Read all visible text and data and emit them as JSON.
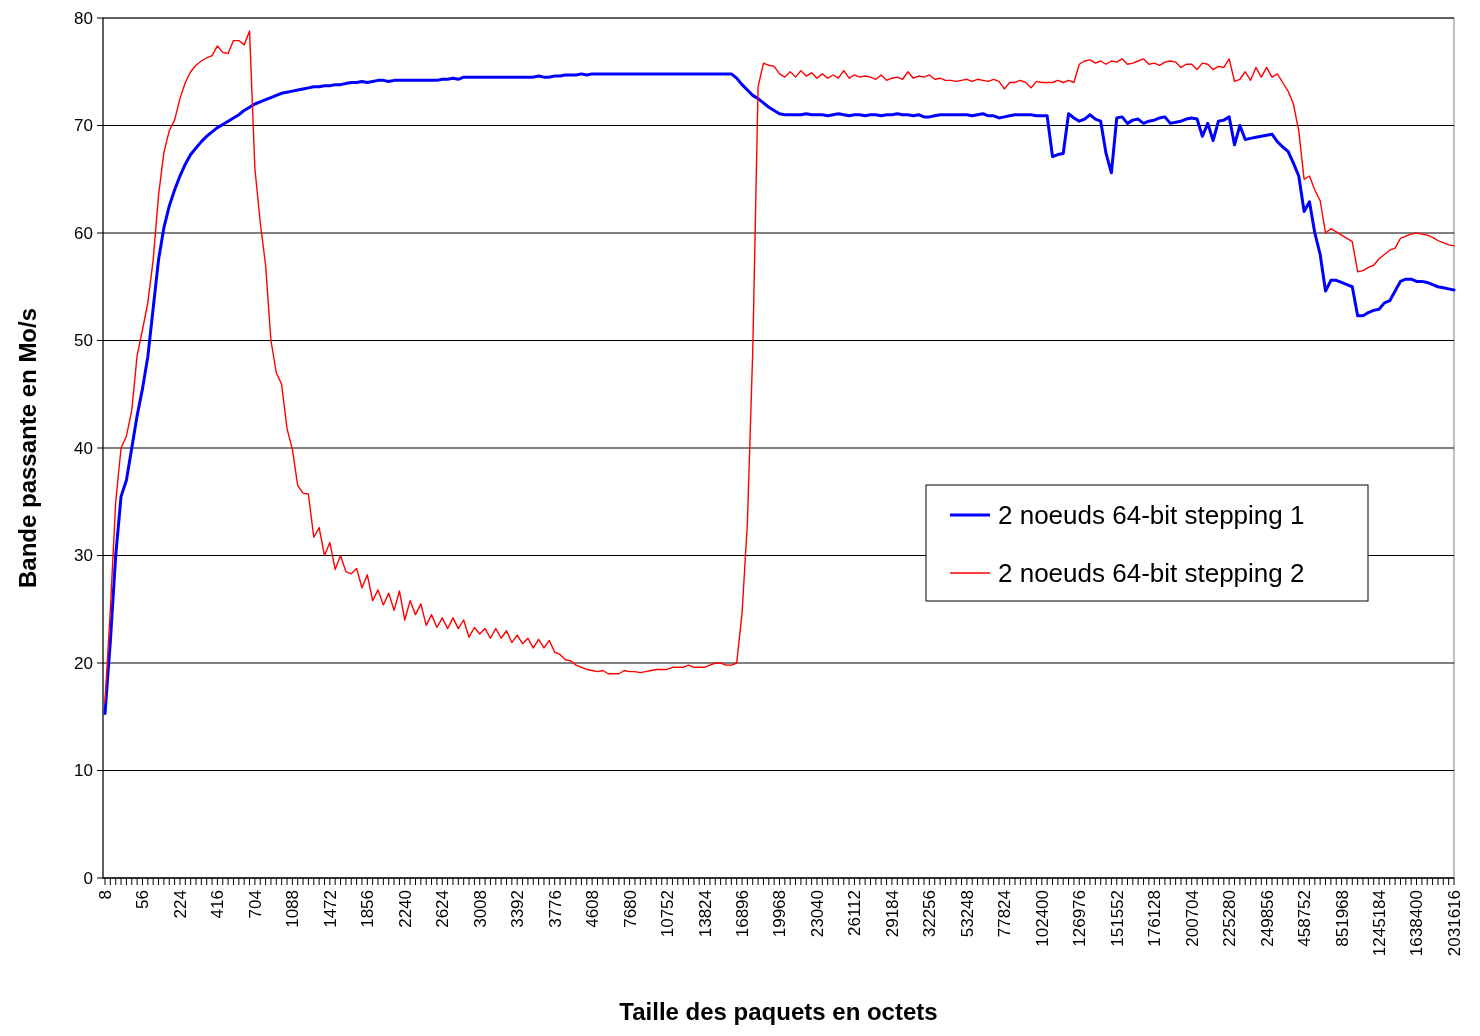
{
  "chart_data": {
    "type": "line",
    "xlabel": "Taille des paquets en octets",
    "ylabel": "Bande passante en Mo/s",
    "categories": [
      "8",
      null,
      null,
      null,
      null,
      null,
      null,
      "56",
      null,
      null,
      null,
      null,
      null,
      null,
      "224",
      null,
      null,
      null,
      null,
      null,
      null,
      "416",
      null,
      null,
      null,
      null,
      null,
      null,
      "704",
      null,
      null,
      null,
      null,
      null,
      null,
      "1088",
      null,
      null,
      null,
      null,
      null,
      null,
      "1472",
      null,
      null,
      null,
      null,
      null,
      null,
      "1856",
      null,
      null,
      null,
      null,
      null,
      null,
      "2240",
      null,
      null,
      null,
      null,
      null,
      null,
      "2624",
      null,
      null,
      null,
      null,
      null,
      null,
      "3008",
      null,
      null,
      null,
      null,
      null,
      null,
      "3392",
      null,
      null,
      null,
      null,
      null,
      null,
      "3776",
      null,
      null,
      null,
      null,
      null,
      null,
      "4608",
      null,
      null,
      null,
      null,
      null,
      null,
      "7680",
      null,
      null,
      null,
      null,
      null,
      null,
      "10752",
      null,
      null,
      null,
      null,
      null,
      null,
      "13824",
      null,
      null,
      null,
      null,
      null,
      null,
      "16896",
      null,
      null,
      null,
      null,
      null,
      null,
      "19968",
      null,
      null,
      null,
      null,
      null,
      null,
      "23040",
      null,
      null,
      null,
      null,
      null,
      null,
      "26112",
      null,
      null,
      null,
      null,
      null,
      null,
      "29184",
      null,
      null,
      null,
      null,
      null,
      null,
      "32256",
      null,
      null,
      null,
      null,
      null,
      null,
      "53248",
      null,
      null,
      null,
      null,
      null,
      null,
      "77824",
      null,
      null,
      null,
      null,
      null,
      null,
      "102400",
      null,
      null,
      null,
      null,
      null,
      null,
      "126976",
      null,
      null,
      null,
      null,
      null,
      null,
      "151552",
      null,
      null,
      null,
      null,
      null,
      null,
      "176128",
      null,
      null,
      null,
      null,
      null,
      null,
      "200704",
      null,
      null,
      null,
      null,
      null,
      null,
      "225280",
      null,
      null,
      null,
      null,
      null,
      null,
      "249856",
      null,
      null,
      null,
      null,
      null,
      null,
      "458752",
      null,
      null,
      null,
      null,
      null,
      null,
      "851968",
      null,
      null,
      null,
      null,
      null,
      null,
      "1245184",
      null,
      null,
      null,
      null,
      null,
      null,
      "1638400",
      null,
      null,
      null,
      null,
      null,
      null,
      "2031616"
    ],
    "series": [
      {
        "name": "2 noeuds 64-bit stepping 1",
        "color": "#0000ff",
        "values": [
          15.3,
          22,
          30,
          35.5,
          37,
          40,
          43,
          45.5,
          48.5,
          53,
          57.5,
          60.5,
          62.5,
          64,
          65.3,
          66.4,
          67.3,
          67.9,
          68.5,
          69,
          69.4,
          69.8,
          70.1,
          70.4,
          70.7,
          71,
          71.4,
          71.7,
          72,
          72.2,
          72.4,
          72.6,
          72.8,
          73,
          73.1,
          73.2,
          73.3,
          73.4,
          73.5,
          73.6,
          73.6,
          73.7,
          73.7,
          73.8,
          73.8,
          73.9,
          74,
          74,
          74.1,
          74,
          74.1,
          74.2,
          74.2,
          74.1,
          74.2,
          74.2,
          74.2,
          74.2,
          74.2,
          74.2,
          74.2,
          74.2,
          74.2,
          74.3,
          74.3,
          74.4,
          74.3,
          74.5,
          74.5,
          74.5,
          74.5,
          74.5,
          74.5,
          74.5,
          74.5,
          74.5,
          74.5,
          74.5,
          74.5,
          74.5,
          74.5,
          74.6,
          74.5,
          74.5,
          74.6,
          74.6,
          74.7,
          74.7,
          74.7,
          74.8,
          74.7,
          74.8,
          74.8,
          74.8,
          74.8,
          74.8,
          74.8,
          74.8,
          74.8,
          74.8,
          74.8,
          74.8,
          74.8,
          74.8,
          74.8,
          74.8,
          74.8,
          74.8,
          74.8,
          74.8,
          74.8,
          74.8,
          74.8,
          74.8,
          74.8,
          74.8,
          74.8,
          74.8,
          74.4,
          73.8,
          73.3,
          72.8,
          72.5,
          72.1,
          71.7,
          71.4,
          71.1,
          71,
          71,
          71,
          71,
          71.1,
          71,
          71,
          71,
          70.9,
          71,
          71.1,
          71,
          70.9,
          71,
          71,
          70.9,
          71,
          71,
          70.9,
          71,
          71,
          71.1,
          71,
          71,
          70.9,
          71,
          70.8,
          70.8,
          70.9,
          71,
          71,
          71,
          71,
          71,
          71,
          70.9,
          71,
          71.1,
          70.9,
          70.9,
          70.7,
          70.8,
          70.9,
          71,
          71,
          71,
          71,
          70.9,
          70.9,
          70.9,
          67.1,
          67.3,
          67.4,
          71.1,
          70.7,
          70.4,
          70.6,
          71,
          70.6,
          70.4,
          67.4,
          65.6,
          70.7,
          70.8,
          70.2,
          70.5,
          70.6,
          70.2,
          70.4,
          70.5,
          70.7,
          70.8,
          70.2,
          70.3,
          70.4,
          70.6,
          70.7,
          70.6,
          69,
          70.2,
          68.6,
          70.4,
          70.5,
          70.8,
          68.2,
          70,
          68.7,
          68.8,
          68.9,
          69,
          69.1,
          69.2,
          68.5,
          68,
          67.6,
          66.5,
          65.3,
          62,
          62.9,
          60,
          58,
          54.6,
          55.6,
          55.6,
          55.4,
          55.2,
          55,
          52.3,
          52.3,
          52.6,
          52.8,
          52.9,
          53.5,
          53.7,
          54.6,
          55.5,
          55.7,
          55.7,
          55.5,
          55.5,
          55.4,
          55.2,
          55,
          54.9,
          54.8,
          54.7
        ]
      },
      {
        "name": "2 noeuds 64-bit stepping 2",
        "color": "#ff0000",
        "values": [
          16.4,
          25,
          35,
          40,
          41.1,
          43.5,
          48.6,
          51,
          53.5,
          57.5,
          63.5,
          67.5,
          69.5,
          70.5,
          72.5,
          74,
          75,
          75.6,
          76,
          76.3,
          76.5,
          77.4,
          76.8,
          76.7,
          77.9,
          77.9,
          77.5,
          78.8,
          66,
          61,
          57,
          50,
          47,
          45.9,
          41.8,
          39.9,
          36.5,
          35.8,
          35.7,
          31.7,
          32.6,
          30,
          31.2,
          28.7,
          30,
          28.5,
          28.3,
          28.8,
          27,
          28.2,
          25.8,
          26.8,
          25.4,
          26.5,
          24.9,
          26.7,
          24,
          25.8,
          24.5,
          25.5,
          23.5,
          24.5,
          23.3,
          24.2,
          23.2,
          24.2,
          23.2,
          24,
          22.4,
          23.3,
          22.7,
          23.2,
          22.3,
          23.2,
          22.3,
          23,
          21.9,
          22.6,
          21.8,
          22.3,
          21.4,
          22.2,
          21.4,
          22.1,
          21,
          20.8,
          20.3,
          20.2,
          19.8,
          19.6,
          19.4,
          19.3,
          19.2,
          19.3,
          19,
          19,
          19,
          19.3,
          19.2,
          19.2,
          19.1,
          19.2,
          19.3,
          19.4,
          19.4,
          19.4,
          19.6,
          19.6,
          19.6,
          19.8,
          19.6,
          19.6,
          19.6,
          19.8,
          20,
          20,
          19.8,
          19.8,
          20,
          24.6,
          33,
          49,
          73.6,
          75.8,
          75.6,
          75.5,
          74.8,
          74.5,
          75,
          74.5,
          75.1,
          74.6,
          74.9,
          74.4,
          74.8,
          74.4,
          74.7,
          74.4,
          75.1,
          74.4,
          74.7,
          74.5,
          74.6,
          74.5,
          74.3,
          74.7,
          74.2,
          74.4,
          74.5,
          74.3,
          75,
          74.4,
          74.6,
          74.5,
          74.7,
          74.3,
          74.4,
          74.2,
          74.2,
          74.1,
          74.2,
          74.3,
          74.1,
          74.3,
          74.2,
          74.1,
          74.3,
          74.1,
          73.4,
          74,
          74,
          74.2,
          74,
          73.5,
          74.1,
          74,
          74,
          74,
          74.2,
          74,
          74.2,
          74,
          75.7,
          76,
          76.1,
          75.8,
          76,
          75.7,
          76,
          75.9,
          76.2,
          75.7,
          75.8,
          76,
          76.2,
          75.7,
          75.8,
          75.6,
          75.9,
          76,
          75.9,
          75.4,
          75.7,
          75.7,
          75.2,
          75.8,
          75.7,
          75.2,
          75.5,
          75.4,
          76.2,
          74.1,
          74.3,
          75,
          74.2,
          75.4,
          74.5,
          75.4,
          74.5,
          74.8,
          74,
          73.2,
          72,
          69.5,
          65,
          65.3,
          64,
          63,
          60,
          60.4,
          60.1,
          59.8,
          59.5,
          59.2,
          56.4,
          56.5,
          56.8,
          57,
          57.6,
          58,
          58.4,
          58.6,
          59.5,
          59.7,
          59.9,
          60,
          59.9,
          59.8,
          59.6,
          59.3,
          59.1,
          58.9,
          58.8
        ]
      }
    ],
    "ylim": [
      0,
      80
    ],
    "yticks": [
      0,
      10,
      20,
      30,
      40,
      50,
      60,
      70,
      80
    ],
    "grid": "y",
    "legend": "right"
  }
}
